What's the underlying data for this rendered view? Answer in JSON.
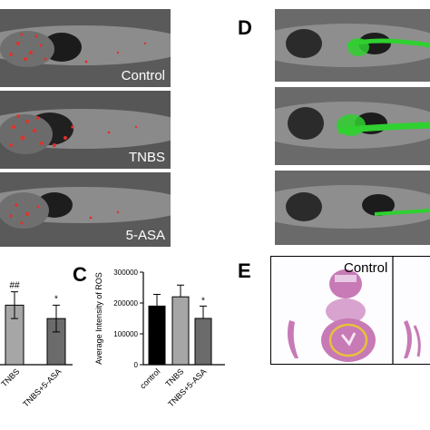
{
  "panels": {
    "top_left_images": [
      {
        "label": "Control"
      },
      {
        "label": "TNBS"
      },
      {
        "label": "5-ASA"
      }
    ],
    "panel_d": {
      "letter": "D"
    },
    "panel_c": {
      "letter": "C"
    },
    "panel_e": {
      "letter": "E",
      "image_label": "Control"
    }
  },
  "colors": {
    "ros_red": "#e0322a",
    "gfp_green": "#2fd02f",
    "he_pink": "#c77ab5",
    "bar_black": "#000000",
    "bar_gray": "#a6a6a6",
    "bar_dark": "#6b6b6b"
  },
  "chart_data": [
    {
      "type": "bar",
      "partial": true,
      "categories": [
        "TNBS",
        "TNBS+5-ASA"
      ],
      "category_labels_visible": [
        "TNBS",
        "TNBS+5-ASA"
      ],
      "values": [
        0.8,
        0.62
      ],
      "error": [
        0.18,
        0.18
      ],
      "annotations": [
        "##",
        "*"
      ],
      "tick_labels": [
        "TNBS",
        "TNBS+5-ASA"
      ]
    },
    {
      "type": "bar",
      "categories": [
        "control",
        "TNBS",
        "TNBS+5-ASA"
      ],
      "tick_labels": [
        "control",
        "TNBS",
        "TNBS+5-ASA"
      ],
      "values": [
        190000,
        220000,
        150000
      ],
      "error": [
        38000,
        38000,
        40000
      ],
      "annotations": [
        "",
        "",
        "*"
      ],
      "ylabel": "Average Intensity of ROS",
      "ylim": [
        0,
        300000
      ],
      "yticks": [
        "0",
        "100000",
        "200000",
        "300000"
      ],
      "bar_colors": [
        "#000000",
        "#a6a6a6",
        "#6b6b6b"
      ]
    }
  ]
}
